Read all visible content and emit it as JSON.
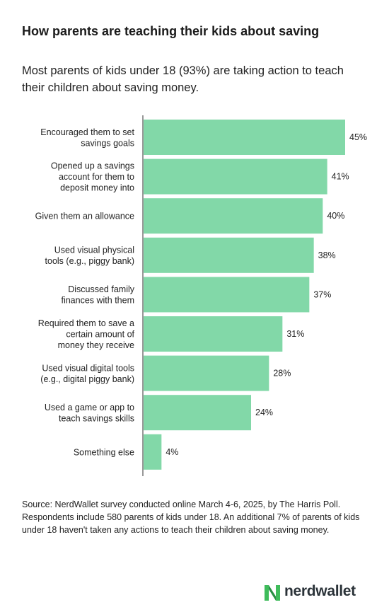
{
  "header": {
    "title": "How parents are teaching their kids about saving",
    "subtitle": "Most parents of kids under 18 (93%) are taking action to teach their children about saving money."
  },
  "chart_data": {
    "type": "bar",
    "orientation": "horizontal",
    "categories": [
      [
        "Encouraged them to set",
        "savings goals"
      ],
      [
        "Opened up a savings",
        "account for them to",
        "deposit money into"
      ],
      [
        "Given them an allowance"
      ],
      [
        "Used visual physical",
        "tools (e.g., piggy bank)"
      ],
      [
        "Discussed family",
        "finances with them"
      ],
      [
        "Required them to save a",
        "certain amount of",
        "money they receive"
      ],
      [
        "Used visual digital tools",
        "(e.g., digital piggy bank)"
      ],
      [
        "Used a game or app to",
        "teach savings skills"
      ],
      [
        "Something else"
      ]
    ],
    "values": [
      45,
      41,
      40,
      38,
      37,
      31,
      28,
      24,
      4
    ],
    "value_labels": [
      "45%",
      "41%",
      "40%",
      "38%",
      "37%",
      "31%",
      "28%",
      "24%",
      "4%"
    ],
    "unit": "%",
    "bar_color": "#82d8a8",
    "xlim": [
      0,
      45
    ],
    "grid": false,
    "legend": "none"
  },
  "footer": {
    "source": "Source: NerdWallet survey conducted online March 4-6, 2025, by The Harris Poll. Respondents include 580 parents of kids under 18. An additional 7% of parents of kids under 18 haven't taken any actions to teach their children about saving money.",
    "logo_text": "nerdwallet"
  },
  "colors": {
    "accent": "#82d8a8",
    "logo_green": "#3fbc5b",
    "text": "#222222"
  }
}
